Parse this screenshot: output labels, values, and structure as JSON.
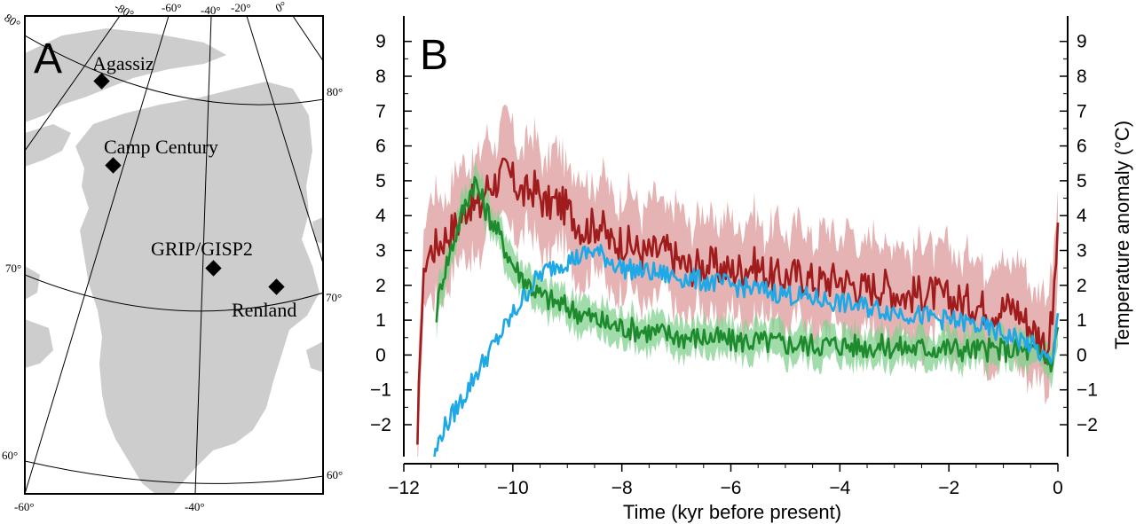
{
  "panel_a": {
    "letter": "A",
    "sites": [
      {
        "name": "Agassiz",
        "lon": -75,
        "lat": 81
      },
      {
        "name": "Camp Century",
        "lon": -61,
        "lat": 77
      },
      {
        "name": "GRIP/GISP2",
        "lon": -38,
        "lat": 72
      },
      {
        "name": "Renland",
        "lon": -27,
        "lat": 71
      }
    ],
    "top_lon_labels": [
      "80°",
      "-80°",
      "-60°",
      "-40°",
      "-20°",
      "0°"
    ],
    "right_lat_labels": [
      "80°",
      "70°",
      "60°"
    ],
    "left_lat_labels": [
      "70°",
      "60°"
    ],
    "bottom_lon_labels": [
      "-60°",
      "-40°"
    ]
  },
  "chart_data": {
    "type": "line",
    "panel_letter": "B",
    "xlabel": "Time (kyr before present)",
    "ylabel": "Temperature anomaly (°C)",
    "xlim": [
      -12,
      0
    ],
    "ylim": [
      -3,
      9.5
    ],
    "xticks": [
      "−12",
      "−10",
      "−8",
      "−6",
      "−4",
      "−2",
      "0"
    ],
    "yticks": [
      "−2",
      "−1",
      "0",
      "1",
      "2",
      "3",
      "4",
      "5",
      "6",
      "7",
      "8",
      "9"
    ],
    "colors": {
      "red_line": "#a01c1c",
      "red_band": "#dc9a9a",
      "green_line": "#1e8a2e",
      "green_band": "#80d18d",
      "blue_line": "#1ea8e6"
    },
    "series": [
      {
        "color": "#a01c1c",
        "band": "#dc9a9a",
        "x": [
          -11.75,
          -11.7,
          -11.6,
          -11.5,
          -11.3,
          -11.0,
          -10.8,
          -10.6,
          -10.5,
          -10.3,
          -10.1,
          -10.0,
          -9.8,
          -9.6,
          -9.4,
          -9.2,
          -9.0,
          -8.7,
          -8.4,
          -8.2,
          -8.0,
          -7.6,
          -7.2,
          -6.8,
          -6.4,
          -6.0,
          -5.6,
          -5.2,
          -4.8,
          -4.4,
          -4.0,
          -3.6,
          -3.2,
          -2.8,
          -2.4,
          -2.0,
          -1.6,
          -1.2,
          -0.8,
          -0.5,
          -0.3,
          -0.2,
          -0.1,
          0.0
        ],
        "y": [
          -3.0,
          0.5,
          2.8,
          3.0,
          3.3,
          3.8,
          4.4,
          4.2,
          4.8,
          5.0,
          5.3,
          5.0,
          4.6,
          4.8,
          4.3,
          4.4,
          4.2,
          3.6,
          3.8,
          3.2,
          3.3,
          2.9,
          3.0,
          2.5,
          2.6,
          2.4,
          2.6,
          2.2,
          2.3,
          2.1,
          2.2,
          1.9,
          2.0,
          1.7,
          1.8,
          1.6,
          1.5,
          1.3,
          1.4,
          0.8,
          0.5,
          0.2,
          1.0,
          3.8
        ]
      },
      {
        "color": "#1e8a2e",
        "band": "#80d18d",
        "x": [
          -11.4,
          -11.3,
          -11.1,
          -10.9,
          -10.7,
          -10.5,
          -10.3,
          -10.0,
          -9.8,
          -9.5,
          -9.2,
          -8.9,
          -8.6,
          -8.3,
          -8.0,
          -7.6,
          -7.2,
          -6.8,
          -6.4,
          -6.0,
          -5.6,
          -5.2,
          -4.8,
          -4.4,
          -4.0,
          -3.6,
          -3.2,
          -2.8,
          -2.4,
          -2.0,
          -1.6,
          -1.2,
          -0.8,
          -0.5,
          -0.3,
          -0.1,
          0.0
        ],
        "y": [
          1.2,
          2.2,
          3.2,
          4.2,
          5.0,
          4.2,
          3.6,
          2.6,
          2.2,
          1.7,
          1.5,
          1.3,
          1.1,
          0.9,
          0.8,
          0.7,
          0.6,
          0.5,
          0.5,
          0.4,
          0.4,
          0.35,
          0.3,
          0.3,
          0.3,
          0.25,
          0.25,
          0.2,
          0.2,
          0.2,
          0.15,
          0.15,
          0.15,
          0.1,
          0.0,
          -0.2,
          0.8
        ]
      },
      {
        "color": "#1ea8e6",
        "x": [
          -11.45,
          -11.3,
          -11.1,
          -10.9,
          -10.7,
          -10.5,
          -10.3,
          -10.1,
          -9.9,
          -9.7,
          -9.5,
          -9.2,
          -9.0,
          -8.8,
          -8.5,
          -8.3,
          -8.0,
          -7.6,
          -7.2,
          -6.8,
          -6.4,
          -6.0,
          -5.6,
          -5.2,
          -4.8,
          -4.4,
          -4.0,
          -3.6,
          -3.2,
          -2.8,
          -2.4,
          -2.0,
          -1.6,
          -1.2,
          -0.8,
          -0.5,
          -0.3,
          -0.1,
          0.0
        ],
        "y": [
          -3.0,
          -2.2,
          -1.7,
          -1.2,
          -0.6,
          -0.1,
          0.4,
          0.9,
          1.4,
          1.9,
          2.3,
          2.6,
          2.7,
          2.8,
          3.0,
          2.8,
          2.5,
          2.4,
          2.3,
          2.2,
          2.1,
          2.0,
          1.9,
          1.8,
          1.7,
          1.6,
          1.5,
          1.4,
          1.3,
          1.2,
          1.1,
          1.0,
          0.9,
          0.7,
          0.5,
          0.3,
          0.0,
          -0.3,
          1.2
        ]
      }
    ]
  }
}
